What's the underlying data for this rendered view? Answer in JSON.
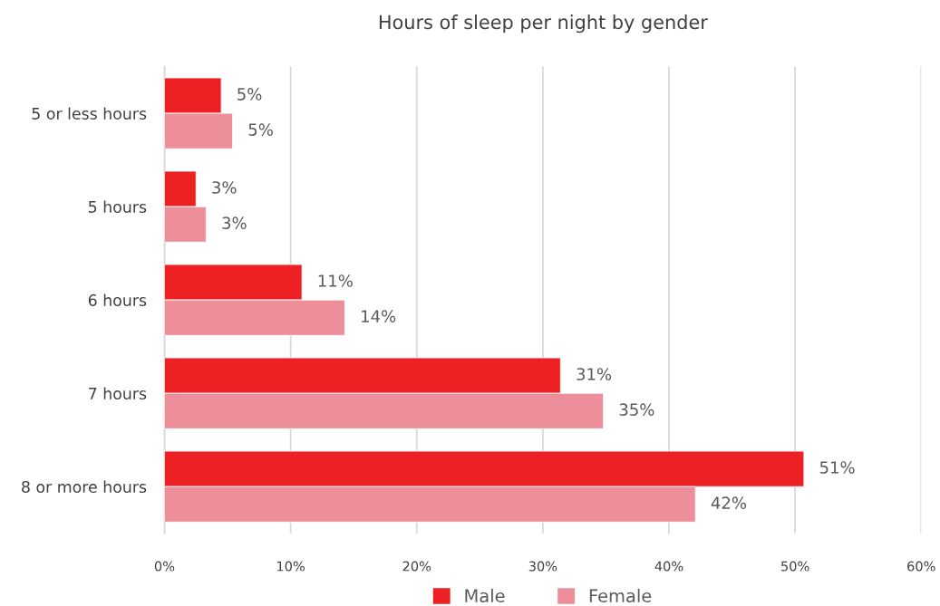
{
  "chart_data": {
    "type": "bar",
    "orientation": "horizontal",
    "title": "Hours of sleep per night by gender",
    "categories": [
      "5 or less hours",
      "5 hours",
      "6 hours",
      "7 hours",
      "8 or more hours"
    ],
    "series": [
      {
        "name": "Male",
        "color": "#ed2024",
        "values": [
          4.5,
          2.5,
          10.9,
          31.4,
          50.7
        ],
        "value_labels": [
          "5%",
          "3%",
          "11%",
          "31%",
          "51%"
        ]
      },
      {
        "name": "Female",
        "color": "#ed8f9a",
        "values": [
          5.4,
          3.3,
          14.3,
          34.8,
          42.1
        ],
        "value_labels": [
          "5%",
          "3%",
          "14%",
          "35%",
          "42%"
        ]
      }
    ],
    "xlim": [
      0,
      60
    ],
    "xticks": [
      {
        "value": 0,
        "label": "0%"
      },
      {
        "value": 10,
        "label": "10%"
      },
      {
        "value": 20,
        "label": "20%"
      },
      {
        "value": 30,
        "label": "30%"
      },
      {
        "value": 40,
        "label": "40%"
      },
      {
        "value": 50,
        "label": "50%"
      },
      {
        "value": 60,
        "label": "60%"
      }
    ],
    "grid": "x",
    "legend": "bottom"
  }
}
